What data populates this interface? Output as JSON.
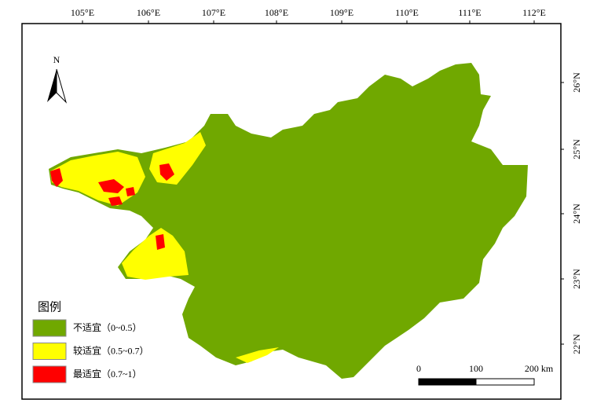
{
  "longitude_labels": [
    "105°E",
    "106°E",
    "107°E",
    "108°E",
    "109°E",
    "110°E",
    "111°E",
    "112°E"
  ],
  "latitude_labels": [
    "26°N",
    "25°N",
    "24°N",
    "23°N",
    "22°N"
  ],
  "north_label": "N",
  "legend": {
    "title": "图例",
    "items": [
      {
        "label": "不适宜（0~0.5）",
        "color": "#70a800"
      },
      {
        "label": "较适宜（0.5~0.7）",
        "color": "#ffff00"
      },
      {
        "label": "最适宜（0.7~1）",
        "color": "#ff0000"
      }
    ]
  },
  "scale_bar": {
    "labels": [
      "0",
      "100",
      "200 km"
    ]
  }
}
